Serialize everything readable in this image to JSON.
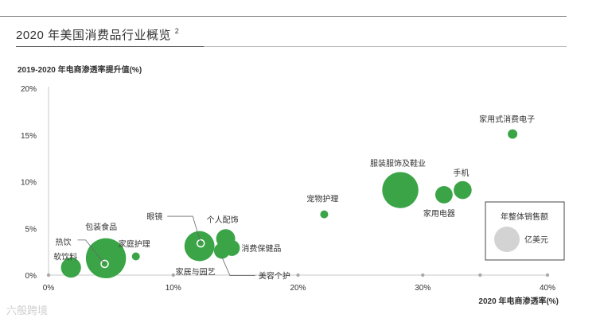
{
  "header": {
    "title": "2020 年美国消费品行业概览",
    "footnote": "2"
  },
  "watermark": "六般跨境",
  "chart_data": {
    "type": "scatter",
    "title": "2020 年美国消费品行业概览",
    "xlabel": "2020 年电商渗透率(%)",
    "ylabel": "2019-2020 年电商渗透率提升值(%)",
    "xlim": [
      0,
      40
    ],
    "ylim": [
      0,
      20
    ],
    "x_ticks": [
      "0%",
      "10%",
      "20%",
      "30%",
      "40%"
    ],
    "y_ticks": [
      "0%",
      "5%",
      "10%",
      "15%",
      "20%"
    ],
    "grid": false,
    "bubble_color": "#3aa446",
    "points": [
      {
        "label": "软饮料",
        "x": 1.8,
        "y": 0.8,
        "size": 4
      },
      {
        "label": "包装食品",
        "x": 4.6,
        "y": 1.8,
        "size": 16
      },
      {
        "label": "热饮",
        "x": 4.5,
        "y": 1.2,
        "size": 0.1
      },
      {
        "label": "家庭护理",
        "x": 7.0,
        "y": 2.0,
        "size": 0.6
      },
      {
        "label": "眼镜",
        "x": 12.2,
        "y": 3.4,
        "size": 0.1
      },
      {
        "label": "家居与园艺",
        "x": 12.1,
        "y": 3.1,
        "size": 9
      },
      {
        "label": "个人配饰",
        "x": 14.2,
        "y": 3.9,
        "size": 3.6
      },
      {
        "label": "美容个护",
        "x": 13.9,
        "y": 2.6,
        "size": 2.5
      },
      {
        "label": "消费保健品",
        "x": 14.7,
        "y": 2.9,
        "size": 2.5
      },
      {
        "label": "宠物护理",
        "x": 22.1,
        "y": 6.5,
        "size": 0.6
      },
      {
        "label": "服装服饰及鞋业",
        "x": 28.2,
        "y": 9.1,
        "size": 13
      },
      {
        "label": "家用电器",
        "x": 31.7,
        "y": 8.6,
        "size": 3
      },
      {
        "label": "手机",
        "x": 33.2,
        "y": 9.1,
        "size": 3.2
      },
      {
        "label": "家用式消费电子",
        "x": 37.2,
        "y": 15.1,
        "size": 0.9
      }
    ],
    "legend": {
      "title": "年整体销售额",
      "unit_label": "亿美元",
      "position": "bottom-right"
    }
  }
}
